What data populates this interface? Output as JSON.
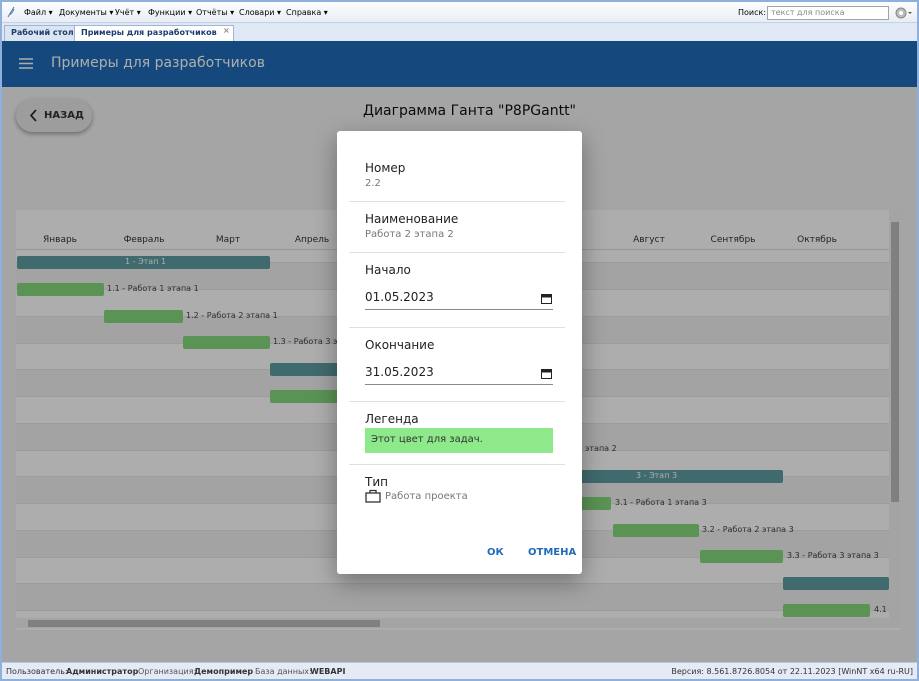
{
  "menu": {
    "items": [
      "Файл ▾",
      "Документы ▾",
      "Учёт ▾",
      "Функции ▾",
      "Отчёты ▾",
      "Словари ▾",
      "Справка ▾"
    ],
    "search_label": "Поиск:",
    "search_placeholder": "текст для поиска"
  },
  "tabs": [
    "Рабочий стол",
    "Примеры для разработчиков"
  ],
  "header": {
    "title": "Примеры для разработчиков"
  },
  "back_button": "НАЗАД",
  "page_title": "Диаграмма Ганта \"P8PGantt\"",
  "gantt": {
    "months": [
      "Январь",
      "Февраль",
      "Март",
      "Апрель",
      "Август",
      "Сентябрь",
      "Октябрь"
    ],
    "tasks": [
      "1 - Этап 1",
      "1.1 - Работа 1 этапа 1",
      "1.2 - Работа 2 этапа 1",
      "1.3 - Работа 3 эт",
      "этапа 2",
      "3 - Этап 3",
      "3.1 - Работа 1 этапа 3",
      "3.2 - Работа 2 этапа 3",
      "3.3 - Работа 3 этапа 3",
      "4.1"
    ]
  },
  "dialog": {
    "fields": [
      {
        "label": "Номер",
        "value": "2.2"
      },
      {
        "label": "Наименование",
        "value": "Работа 2 этапа 2"
      },
      {
        "label": "Начало",
        "value": "01.05.2023"
      },
      {
        "label": "Окончание",
        "value": "31.05.2023"
      },
      {
        "label": "Легенда",
        "value": "Этот цвет для задач."
      },
      {
        "label": "Тип",
        "value": "Работа проекта"
      }
    ],
    "buttons": [
      "ОК",
      "ОТМЕНА"
    ]
  },
  "status": {
    "user_label": "Пользователь:",
    "user": "Администратор",
    "org_label": "Организация:",
    "org": "Демопример",
    "db_label": "База данных:",
    "db": "WEBAPI",
    "version": "Версия: 8.561.8726.8054 от 22.11.2023 [WinNT x64 ru-RU]"
  }
}
